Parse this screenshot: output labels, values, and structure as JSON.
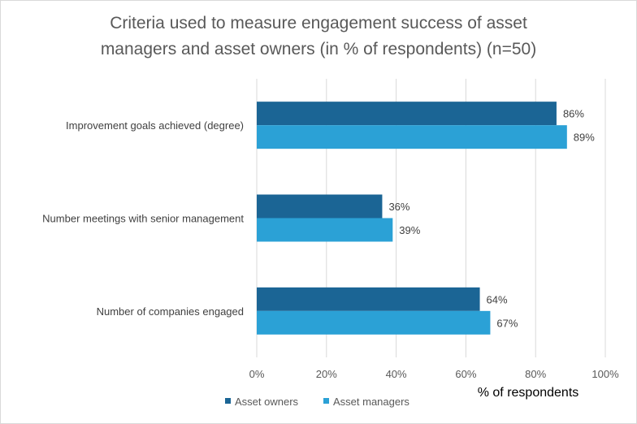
{
  "chart_data": {
    "type": "bar",
    "orientation": "horizontal",
    "title_lines": [
      "Criteria used to measure engagement success of asset",
      "managers and asset owners (in % of respondents) (n=50)"
    ],
    "categories": [
      "Improvement goals achieved (degree)",
      "Number meetings with senior management",
      "Number of companies engaged"
    ],
    "series": [
      {
        "name": "Asset owners",
        "color": "#1b6595",
        "values": [
          86,
          36,
          64
        ],
        "labels": [
          "86%",
          "36%",
          "64%"
        ]
      },
      {
        "name": "Asset managers",
        "color": "#2ba1d6",
        "values": [
          89,
          39,
          67
        ],
        "labels": [
          "89%",
          "39%",
          "67%"
        ]
      }
    ],
    "xlim": [
      0,
      100
    ],
    "x_ticks": [
      0,
      20,
      40,
      60,
      80,
      100
    ],
    "x_tick_labels": [
      "0%",
      "20%",
      "40%",
      "60%",
      "80%",
      "100%"
    ],
    "xlabel": "% of respondents",
    "grid": true,
    "legend_position": "bottom"
  }
}
